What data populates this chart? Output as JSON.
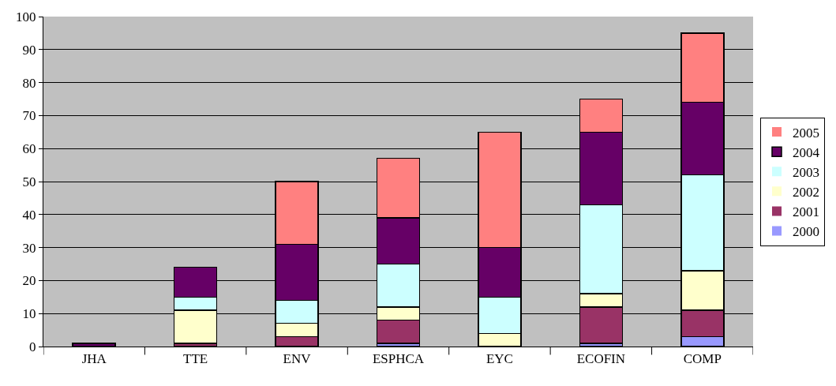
{
  "chart_data": {
    "type": "bar",
    "stacked": true,
    "categories": [
      "JHA",
      "TTE",
      "ENV",
      "ESPHCA",
      "EYC",
      "ECOFIN",
      "COMP"
    ],
    "series": [
      {
        "name": "2000",
        "color": "#9999ff",
        "values": [
          0,
          0,
          0,
          1,
          0,
          1,
          3
        ]
      },
      {
        "name": "2001",
        "color": "#993366",
        "values": [
          0,
          1,
          3,
          7,
          0,
          11,
          8
        ]
      },
      {
        "name": "2002",
        "color": "#ffffcc",
        "values": [
          0,
          10,
          4,
          4,
          4,
          4,
          12
        ]
      },
      {
        "name": "2003",
        "color": "#ccffff",
        "values": [
          0,
          4,
          7,
          13,
          11,
          27,
          29
        ]
      },
      {
        "name": "2004",
        "color": "#660066",
        "values": [
          1,
          9,
          17,
          14,
          15,
          22,
          22
        ]
      },
      {
        "name": "2005",
        "color": "#ff8080",
        "values": [
          0,
          0,
          19,
          18,
          35,
          10,
          21
        ]
      }
    ],
    "ylim": [
      0,
      100
    ],
    "yticks": [
      0,
      10,
      20,
      30,
      40,
      50,
      60,
      70,
      80,
      90,
      100
    ],
    "grid": "y",
    "legend": "right"
  }
}
